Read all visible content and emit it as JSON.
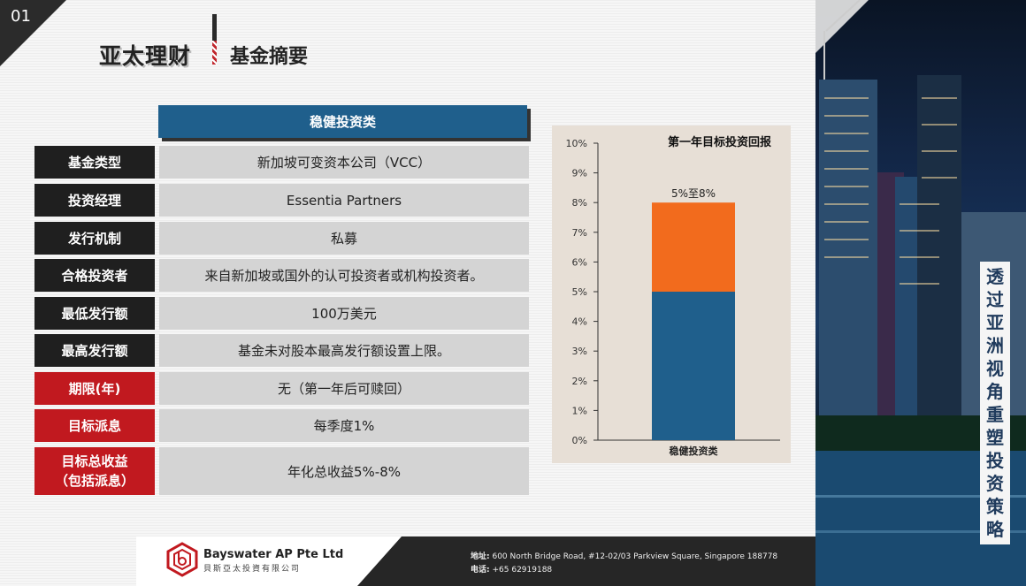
{
  "slide_number": "01",
  "title": {
    "brand": "亚太理财",
    "subtitle": "基金摘要"
  },
  "table": {
    "header": "稳健投资类",
    "rows": [
      {
        "label": "基金类型",
        "value": "新加坡可变资本公司（VCC）",
        "style": "dark"
      },
      {
        "label": "投资经理",
        "value": "Essentia Partners",
        "style": "dark"
      },
      {
        "label": "发行机制",
        "value": "私募",
        "style": "dark"
      },
      {
        "label": "合格投资者",
        "value": "来自新加坡或国外的认可投资者或机构投资者。",
        "style": "dark"
      },
      {
        "label": "最低发行额",
        "value": "100万美元",
        "style": "dark"
      },
      {
        "label": "最高发行额",
        "value": "基金未对股本最高发行额设置上限。",
        "style": "dark"
      },
      {
        "label": "期限(年)",
        "value": "无（第一年后可赎回）",
        "style": "red"
      },
      {
        "label": "目标派息",
        "value": "每季度1%",
        "style": "red"
      },
      {
        "label_line1": "目标总收益",
        "label_line2": "（包括派息）",
        "value": "年化总收益5%-8%",
        "style": "red"
      }
    ]
  },
  "chart_data": {
    "type": "bar",
    "title": "第一年目标投资回报",
    "categories": [
      "稳健投资类"
    ],
    "series": [
      {
        "values": [
          5
        ],
        "color": "#1f5f8c"
      },
      {
        "values": [
          3
        ],
        "color": "#f26b1d"
      }
    ],
    "stacked": true,
    "data_label": "5%至8%",
    "ylim": [
      0,
      10
    ],
    "yticks": [
      "0%",
      "1%",
      "2%",
      "3%",
      "4%",
      "5%",
      "6%",
      "7%",
      "8%",
      "9%",
      "10%"
    ],
    "grid": false
  },
  "tagline": "透过亚洲视角重塑投资策略",
  "footer": {
    "company_name": "Bayswater AP Pte Ltd",
    "company_cn": "貝斯亞太投資有限公司",
    "address_label": "地址:",
    "address": "600 North Bridge Road, #12-02/03 Parkview Square, Singapore 188778",
    "phone_label": "电话:",
    "phone": "+65 62919188"
  },
  "colors": {
    "accent_blue": "#1f5f8c",
    "accent_red": "#c1191f",
    "accent_orange": "#f26b1d"
  }
}
